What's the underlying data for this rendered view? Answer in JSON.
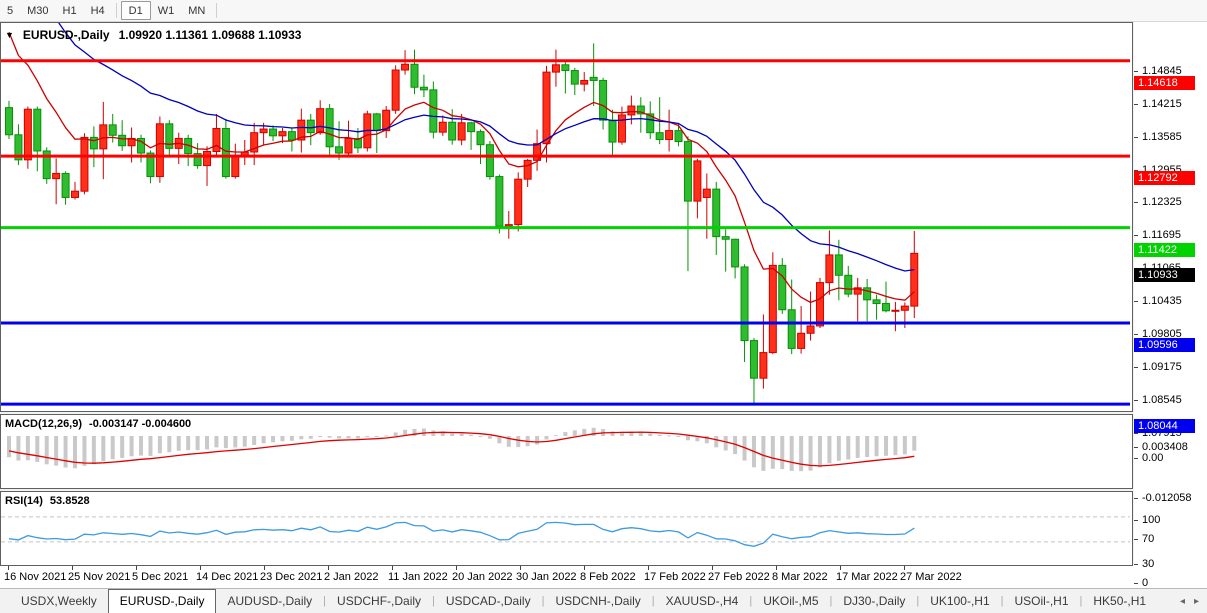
{
  "toolbar": {
    "groups": [
      [
        "5",
        "M30",
        "H1",
        "H4"
      ],
      [
        "D1",
        "W1",
        "MN"
      ]
    ],
    "active": "D1"
  },
  "chart_data": {
    "type": "candlestick",
    "symbol": "EURUSD-",
    "period": "Daily",
    "title": "EURUSD-,Daily",
    "ohlc_text": "1.09920 1.11361 1.09688 1.10933",
    "current": {
      "open": 1.0992,
      "high": 1.11361,
      "low": 1.09688,
      "close": 1.10933
    },
    "price_axis": {
      "max": 1.1534,
      "min": 1.0795,
      "step": 0.0063,
      "labels": [
        "1.14845",
        "1.14215",
        "1.13585",
        "1.12955",
        "1.12325",
        "1.11695",
        "1.11065",
        "1.10435",
        "1.09805",
        "1.09175",
        "1.08545",
        "1.07915"
      ]
    },
    "x_labels": [
      "16 Nov 2021",
      "25 Nov 2021",
      "5 Dec 2021",
      "14 Dec 2021",
      "23 Dec 2021",
      "2 Jan 2022",
      "11 Jan 2022",
      "20 Jan 2022",
      "30 Jan 2022",
      "8 Feb 2022",
      "17 Feb 2022",
      "27 Feb 2022",
      "8 Mar 2022",
      "17 Mar 2022",
      "27 Mar 2022"
    ],
    "colors": {
      "bull_fill": "#ff2f1a",
      "bull_stroke": "#cf0000",
      "bear_fill": "#30bc30",
      "bear_stroke": "#069206",
      "macd_hist": "#c9c9c9",
      "macd_signal": "#e00000",
      "rsi_line": "#3e9be0",
      "rsi_level": "#c4c4c4"
    },
    "hlines": [
      {
        "price": 1.14618,
        "label": "1.14618",
        "color": "#ff0000"
      },
      {
        "price": 1.12792,
        "label": "1.12792",
        "color": "#ff0000"
      },
      {
        "price": 1.11422,
        "label": "1.11422",
        "color": "#00d300"
      },
      {
        "price": 1.09596,
        "label": "1.09596",
        "color": "#0000ee"
      },
      {
        "price": 1.08044,
        "label": "1.08044",
        "color": "#0000ee"
      }
    ],
    "current_price": {
      "value": 1.10933,
      "label": "1.10933",
      "color": "#000000"
    },
    "moving_averages": [
      {
        "name": "fast",
        "method": "ema",
        "period": 10,
        "seed": 1.156,
        "color": "#cc0000"
      },
      {
        "name": "slow",
        "method": "ema",
        "period": 25,
        "seed": 1.17,
        "color": "#0000bb"
      }
    ],
    "macd": {
      "label": "MACD(12,26,9)",
      "values_text": "-0.003147 -0.004600",
      "fast": 12,
      "slow": 26,
      "signal": 9,
      "seed_fast": 1.148,
      "seed_slow": 1.1535,
      "seed_signal": -0.004,
      "axis": {
        "max": 0.0063,
        "min": -0.015
      },
      "axis_labels": [
        {
          "text": "0.003408",
          "value": 0.003408
        },
        {
          "text": "0.00",
          "value": 0
        },
        {
          "text": "-0.012058",
          "value": -0.012058
        }
      ]
    },
    "rsi": {
      "label": "RSI(14)",
      "value_text": "53.8528",
      "period": 14,
      "seed_gain": 0.0025,
      "seed_loss": 0.0045,
      "levels": [
        70,
        30
      ],
      "axis": {
        "max": 110,
        "min": -4
      },
      "axis_labels": [
        {
          "text": "100",
          "value": 100
        },
        {
          "text": "70",
          "value": 70
        },
        {
          "text": "30",
          "value": 30
        },
        {
          "text": "0",
          "value": 0
        }
      ]
    },
    "candles": [
      [
        1.1372,
        1.1385,
        1.1312,
        1.132
      ],
      [
        1.132,
        1.134,
        1.1262,
        1.1272
      ],
      [
        1.1272,
        1.1374,
        1.1255,
        1.1369
      ],
      [
        1.1369,
        1.1374,
        1.125,
        1.1289
      ],
      [
        1.1289,
        1.1296,
        1.1226,
        1.1236
      ],
      [
        1.1236,
        1.1275,
        1.1187,
        1.1246
      ],
      [
        1.1246,
        1.125,
        1.1186,
        1.12
      ],
      [
        1.12,
        1.123,
        1.1196,
        1.1212
      ],
      [
        1.1212,
        1.1323,
        1.1206,
        1.1315
      ],
      [
        1.1315,
        1.1336,
        1.1258,
        1.1293
      ],
      [
        1.1293,
        1.1383,
        1.1235,
        1.1339
      ],
      [
        1.1339,
        1.136,
        1.1305,
        1.1319
      ],
      [
        1.1319,
        1.1348,
        1.1289,
        1.1299
      ],
      [
        1.1299,
        1.1334,
        1.1267,
        1.1313
      ],
      [
        1.1313,
        1.132,
        1.1267,
        1.1285
      ],
      [
        1.1285,
        1.129,
        1.1227,
        1.124
      ],
      [
        1.124,
        1.1355,
        1.1228,
        1.1341
      ],
      [
        1.1341,
        1.1348,
        1.128,
        1.1294
      ],
      [
        1.1294,
        1.1324,
        1.1264,
        1.1313
      ],
      [
        1.1313,
        1.132,
        1.126,
        1.1284
      ],
      [
        1.1284,
        1.1304,
        1.1255,
        1.1261
      ],
      [
        1.1261,
        1.1298,
        1.1222,
        1.1288
      ],
      [
        1.1288,
        1.136,
        1.128,
        1.1332
      ],
      [
        1.1332,
        1.135,
        1.1236,
        1.124
      ],
      [
        1.124,
        1.1303,
        1.1236,
        1.128
      ],
      [
        1.128,
        1.131,
        1.1262,
        1.1287
      ],
      [
        1.1287,
        1.1343,
        1.1262,
        1.1324
      ],
      [
        1.1324,
        1.1343,
        1.13,
        1.1331
      ],
      [
        1.1331,
        1.1338,
        1.1308,
        1.1318
      ],
      [
        1.1318,
        1.1333,
        1.1304,
        1.1326
      ],
      [
        1.1326,
        1.1334,
        1.1288,
        1.131
      ],
      [
        1.131,
        1.137,
        1.1286,
        1.1348
      ],
      [
        1.1348,
        1.136,
        1.13,
        1.1324
      ],
      [
        1.1324,
        1.1386,
        1.132,
        1.137
      ],
      [
        1.137,
        1.1379,
        1.1279,
        1.1297
      ],
      [
        1.1297,
        1.1346,
        1.1272,
        1.1285
      ],
      [
        1.1285,
        1.1347,
        1.128,
        1.1313
      ],
      [
        1.1313,
        1.1333,
        1.1285,
        1.1295
      ],
      [
        1.1295,
        1.1366,
        1.1288,
        1.136
      ],
      [
        1.136,
        1.1362,
        1.1285,
        1.1328
      ],
      [
        1.1328,
        1.1375,
        1.1314,
        1.1367
      ],
      [
        1.1367,
        1.1453,
        1.136,
        1.1444
      ],
      [
        1.1444,
        1.1482,
        1.1435,
        1.1455
      ],
      [
        1.1455,
        1.1483,
        1.1398,
        1.1411
      ],
      [
        1.1411,
        1.1435,
        1.1392,
        1.1406
      ],
      [
        1.1406,
        1.1422,
        1.1313,
        1.1325
      ],
      [
        1.1325,
        1.1357,
        1.1318,
        1.1344
      ],
      [
        1.1344,
        1.1369,
        1.1301,
        1.131
      ],
      [
        1.131,
        1.136,
        1.13,
        1.1343
      ],
      [
        1.1343,
        1.1345,
        1.1291,
        1.1326
      ],
      [
        1.1326,
        1.133,
        1.1264,
        1.1301
      ],
      [
        1.1301,
        1.1308,
        1.1234,
        1.124
      ],
      [
        1.124,
        1.1244,
        1.1131,
        1.1145
      ],
      [
        1.1145,
        1.1174,
        1.1121,
        1.1148
      ],
      [
        1.1148,
        1.1248,
        1.1135,
        1.1235
      ],
      [
        1.1235,
        1.1274,
        1.122,
        1.1271
      ],
      [
        1.1271,
        1.133,
        1.1251,
        1.1303
      ],
      [
        1.1303,
        1.1452,
        1.1267,
        1.144
      ],
      [
        1.144,
        1.1483,
        1.1412,
        1.1454
      ],
      [
        1.1454,
        1.146,
        1.1399,
        1.1443
      ],
      [
        1.1443,
        1.1448,
        1.1396,
        1.1417
      ],
      [
        1.1417,
        1.144,
        1.1403,
        1.1424
      ],
      [
        1.143,
        1.1495,
        1.1375,
        1.1424
      ],
      [
        1.1424,
        1.1429,
        1.133,
        1.1348
      ],
      [
        1.1348,
        1.1368,
        1.1278,
        1.1306
      ],
      [
        1.1306,
        1.1374,
        1.1301,
        1.1358
      ],
      [
        1.1358,
        1.1395,
        1.134,
        1.1375
      ],
      [
        1.1375,
        1.1392,
        1.1324,
        1.136
      ],
      [
        1.136,
        1.1384,
        1.1312,
        1.1324
      ],
      [
        1.1324,
        1.1392,
        1.1302,
        1.1311
      ],
      [
        1.1311,
        1.1368,
        1.1288,
        1.1328
      ],
      [
        1.1328,
        1.1342,
        1.1298,
        1.1307
      ],
      [
        1.1307,
        1.1317,
        1.1059,
        1.1193
      ],
      [
        1.1193,
        1.1274,
        1.116,
        1.127
      ],
      [
        1.12,
        1.1246,
        1.1121,
        1.1216
      ],
      [
        1.1216,
        1.123,
        1.109,
        1.1125
      ],
      [
        1.1125,
        1.1139,
        1.1058,
        1.112
      ],
      [
        1.112,
        1.1121,
        1.1045,
        1.1067
      ],
      [
        1.1067,
        1.1072,
        1.0885,
        1.0926
      ],
      [
        1.0926,
        1.0931,
        1.0806,
        1.0854
      ],
      [
        1.0854,
        1.0976,
        1.0834,
        1.0903
      ],
      [
        1.0903,
        1.1095,
        1.09,
        1.107
      ],
      [
        1.107,
        1.1084,
        1.0977,
        1.0985
      ],
      [
        1.0985,
        1.1043,
        1.09,
        1.0911
      ],
      [
        1.0911,
        1.0992,
        1.0901,
        1.094
      ],
      [
        1.094,
        1.102,
        1.0926,
        1.0954
      ],
      [
        1.0954,
        1.1046,
        1.095,
        1.1037
      ],
      [
        1.1037,
        1.1137,
        1.1014,
        1.109
      ],
      [
        1.109,
        1.1119,
        1.1003,
        1.1051
      ],
      [
        1.1051,
        1.1069,
        1.1009,
        1.1015
      ],
      [
        1.1015,
        1.1046,
        1.0963,
        1.1027
      ],
      [
        1.1027,
        1.1044,
        1.0963,
        1.1004
      ],
      [
        1.1004,
        1.1014,
        1.0966,
        1.0997
      ],
      [
        1.0997,
        1.1039,
        1.098,
        1.0983
      ],
      [
        1.0983,
        1.1,
        1.0944,
        1.0984
      ],
      [
        1.0984,
        1.0999,
        1.095,
        1.0992
      ],
      [
        1.0992,
        1.1136,
        1.0969,
        1.1093
      ]
    ]
  },
  "tabs": {
    "items": [
      "USDX,Weekly",
      "EURUSD-,Daily",
      "AUDUSD-,Daily",
      "USDCHF-,Daily",
      "USDCAD-,Daily",
      "USDCNH-,Daily",
      "XAUUSD-,H4",
      "UKOil-,M5",
      "DJ30-,Daily",
      "UK100-,H1",
      "USOil-,H1",
      "HK50-,H1"
    ],
    "active_index": 1,
    "left_arrow": "◂",
    "right_arrow": "▸"
  }
}
